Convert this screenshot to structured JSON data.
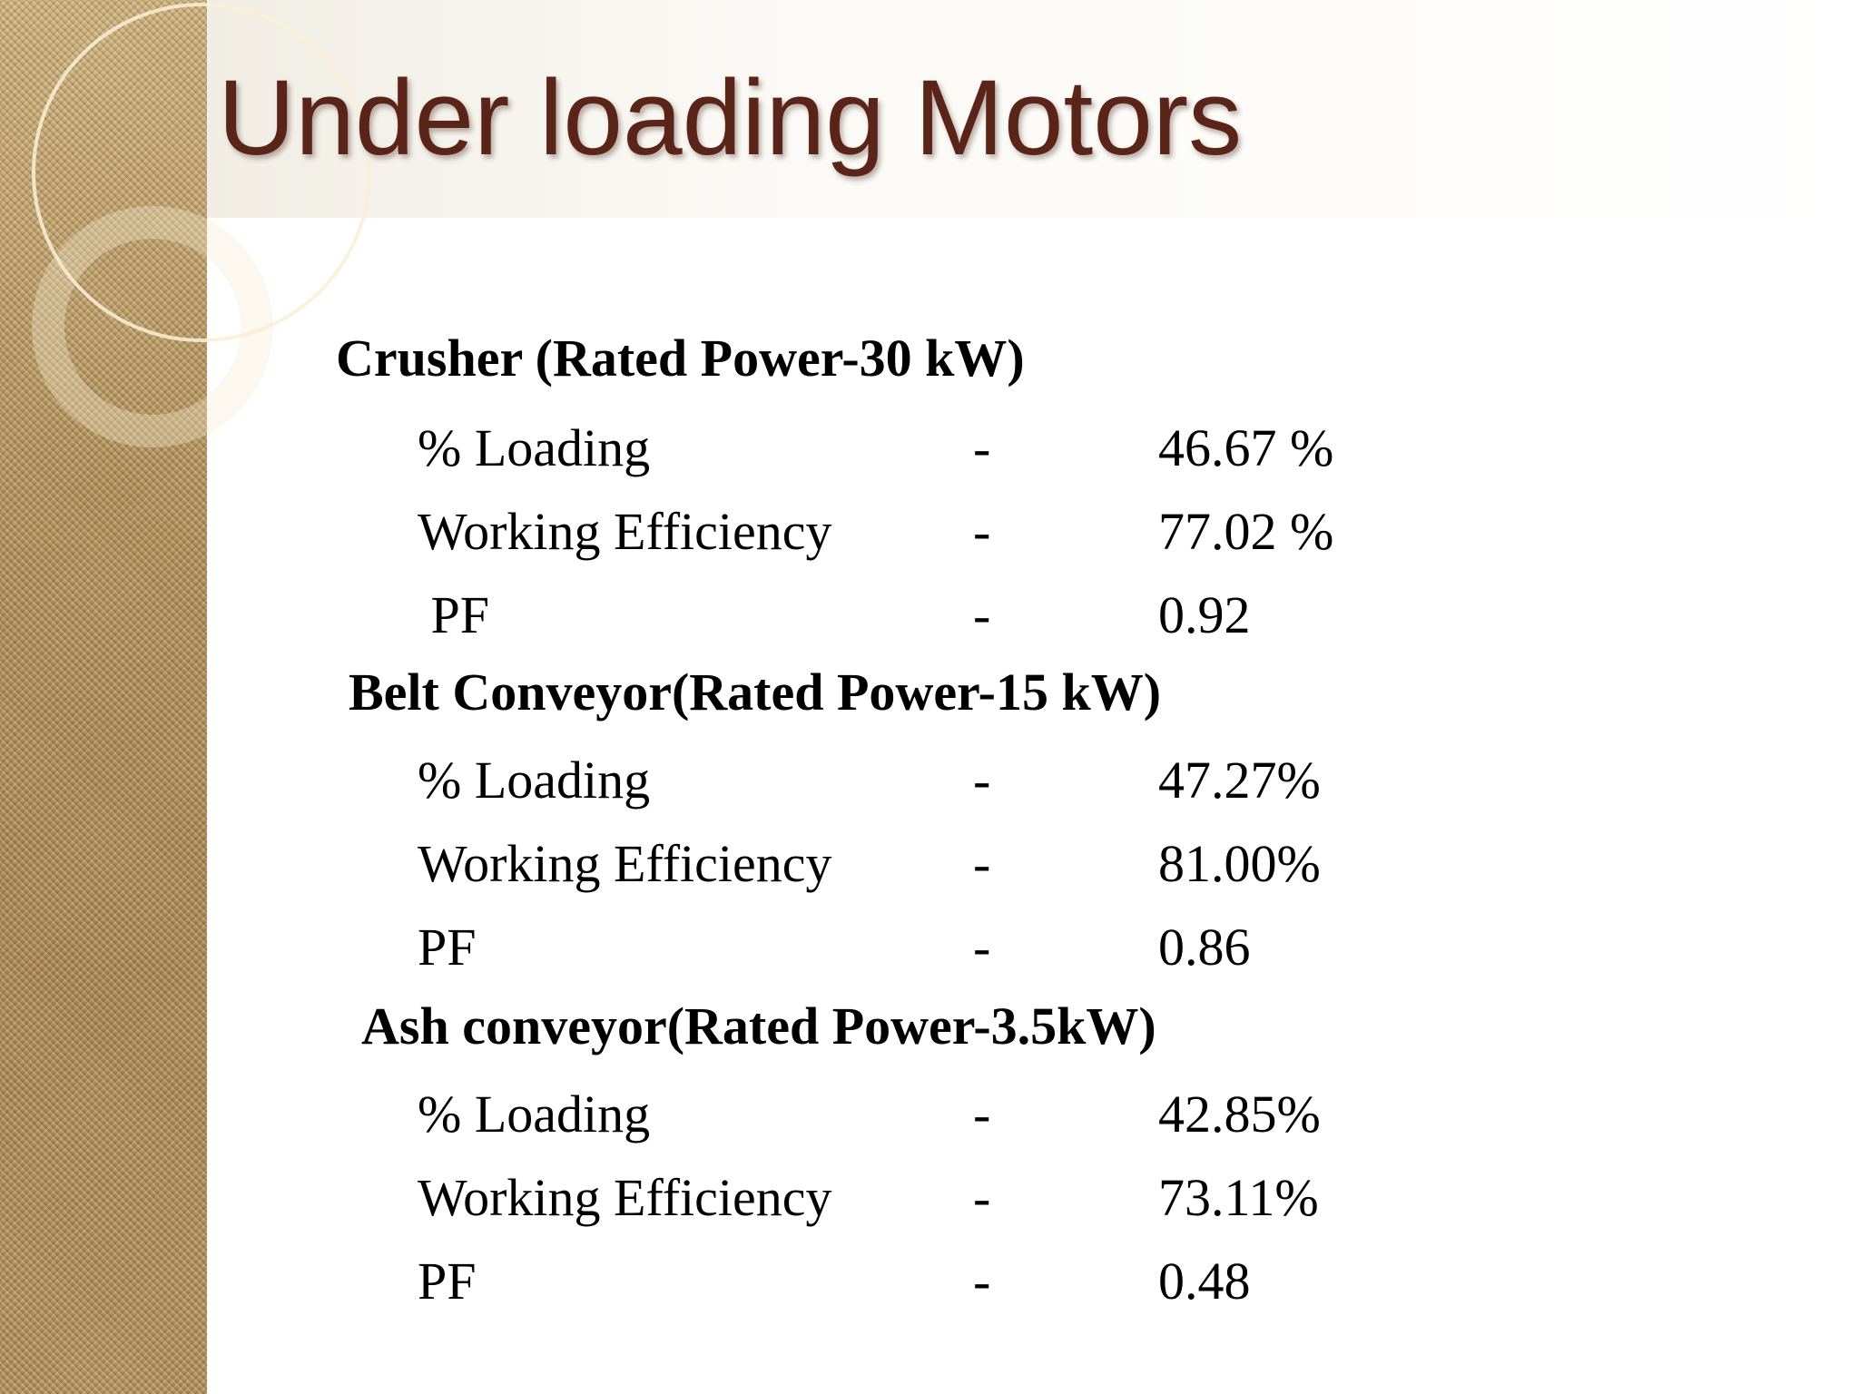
{
  "slide": {
    "title": "Under loading Motors",
    "colors": {
      "title": "#5b2418",
      "body_text": "#000000",
      "sidebar": "#b79862"
    },
    "groups": [
      {
        "heading": "Crusher (Rated Power-30 kW)",
        "rows": [
          {
            "label": "% Loading",
            "separator": "-",
            "value": "46.67 %"
          },
          {
            "label": "Working Efficiency",
            "separator": "-",
            "value": "77.02 %"
          },
          {
            "label": " PF",
            "separator": "-",
            "value": "0.92"
          }
        ]
      },
      {
        "heading": "Belt Conveyor(Rated Power-15 kW)",
        "rows": [
          {
            "label": "% Loading",
            "separator": "-",
            "value": "47.27%"
          },
          {
            "label": "Working Efficiency",
            "separator": "-",
            "value": "81.00%"
          },
          {
            "label": "PF",
            "separator": "-",
            "value": "0.86"
          }
        ]
      },
      {
        "heading": "Ash conveyor(Rated Power-3.5kW)",
        "rows": [
          {
            "label": "% Loading",
            "separator": "-",
            "value": "42.85%"
          },
          {
            "label": "Working Efficiency",
            "separator": "-",
            "value": "73.11%"
          },
          {
            "label": "PF",
            "separator": "-",
            "value": "0.48"
          }
        ]
      }
    ]
  }
}
